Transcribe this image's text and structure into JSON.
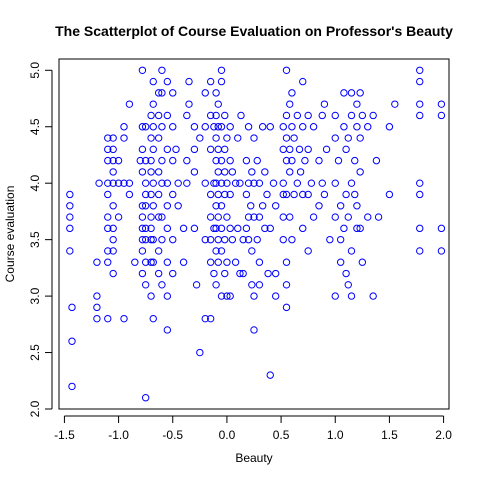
{
  "chart_data": {
    "type": "scatter",
    "title": "The Scatterplot of Course Evaluation on Professor's Beauty",
    "xlabel": "Beauty",
    "ylabel": "Course evaluation",
    "xlim": [
      -1.55,
      2.05
    ],
    "ylim": [
      2.0,
      5.1
    ],
    "x_ticks": [
      -1.5,
      -1.0,
      -0.5,
      0.0,
      0.5,
      1.0,
      1.5,
      2.0
    ],
    "x_tick_labels": [
      "-1.5",
      "-1.0",
      "-0.5",
      "0.0",
      "0.5",
      "1.0",
      "1.5",
      "2.0"
    ],
    "y_ticks": [
      2.0,
      2.5,
      3.0,
      3.5,
      4.0,
      4.5,
      5.0
    ],
    "y_tick_labels": [
      "2.0",
      "2.5",
      "3.0",
      "3.5",
      "4.0",
      "4.5",
      "5.0"
    ],
    "grid": false,
    "legend": "none",
    "marker": "open-circle",
    "point_color": "#0000ff",
    "points": [
      [
        -1.45,
        3.9
      ],
      [
        -1.45,
        3.8
      ],
      [
        -1.45,
        3.7
      ],
      [
        -1.45,
        3.6
      ],
      [
        -1.45,
        3.4
      ],
      [
        -1.43,
        2.9
      ],
      [
        -1.43,
        2.6
      ],
      [
        -1.43,
        2.2
      ],
      [
        -1.2,
        3.3
      ],
      [
        -1.2,
        3.0
      ],
      [
        -1.2,
        2.9
      ],
      [
        -1.2,
        2.8
      ],
      [
        -1.18,
        4.0
      ],
      [
        -1.1,
        4.4
      ],
      [
        -1.1,
        4.3
      ],
      [
        -1.1,
        4.2
      ],
      [
        -1.1,
        4.0
      ],
      [
        -1.1,
        3.9
      ],
      [
        -1.1,
        3.7
      ],
      [
        -1.1,
        3.6
      ],
      [
        -1.1,
        3.4
      ],
      [
        -1.1,
        3.3
      ],
      [
        -1.1,
        2.8
      ],
      [
        -1.05,
        4.4
      ],
      [
        -1.05,
        4.3
      ],
      [
        -1.05,
        4.2
      ],
      [
        -1.05,
        4.1
      ],
      [
        -1.05,
        4.0
      ],
      [
        -1.05,
        3.8
      ],
      [
        -1.05,
        3.6
      ],
      [
        -1.05,
        3.5
      ],
      [
        -1.05,
        3.4
      ],
      [
        -1.05,
        3.2
      ],
      [
        -1.0,
        4.2
      ],
      [
        -1.0,
        4.0
      ],
      [
        -1.0,
        3.7
      ],
      [
        -0.95,
        4.5
      ],
      [
        -0.95,
        4.4
      ],
      [
        -0.95,
        4.0
      ],
      [
        -0.95,
        2.8
      ],
      [
        -0.9,
        4.7
      ],
      [
        -0.9,
        4.0
      ],
      [
        -0.9,
        3.9
      ],
      [
        -0.85,
        3.3
      ],
      [
        -0.8,
        4.2
      ],
      [
        -0.78,
        5.0
      ],
      [
        -0.78,
        4.5
      ],
      [
        -0.78,
        4.3
      ],
      [
        -0.78,
        4.1
      ],
      [
        -0.78,
        3.8
      ],
      [
        -0.78,
        3.7
      ],
      [
        -0.78,
        3.6
      ],
      [
        -0.78,
        3.5
      ],
      [
        -0.78,
        3.4
      ],
      [
        -0.78,
        3.2
      ],
      [
        -0.75,
        4.5
      ],
      [
        -0.75,
        4.2
      ],
      [
        -0.75,
        4.0
      ],
      [
        -0.75,
        3.9
      ],
      [
        -0.75,
        3.8
      ],
      [
        -0.75,
        3.6
      ],
      [
        -0.75,
        3.5
      ],
      [
        -0.75,
        3.3
      ],
      [
        -0.75,
        3.1
      ],
      [
        -0.75,
        2.1
      ],
      [
        -0.7,
        4.6
      ],
      [
        -0.7,
        4.4
      ],
      [
        -0.7,
        4.2
      ],
      [
        -0.7,
        4.1
      ],
      [
        -0.7,
        3.9
      ],
      [
        -0.7,
        3.7
      ],
      [
        -0.7,
        3.6
      ],
      [
        -0.7,
        3.5
      ],
      [
        -0.7,
        3.3
      ],
      [
        -0.7,
        3.0
      ],
      [
        -0.68,
        4.9
      ],
      [
        -0.68,
        4.7
      ],
      [
        -0.68,
        4.5
      ],
      [
        -0.68,
        4.3
      ],
      [
        -0.68,
        4.0
      ],
      [
        -0.68,
        3.8
      ],
      [
        -0.68,
        3.5
      ],
      [
        -0.68,
        3.3
      ],
      [
        -0.68,
        2.8
      ],
      [
        -0.63,
        4.8
      ],
      [
        -0.63,
        4.6
      ],
      [
        -0.63,
        4.4
      ],
      [
        -0.63,
        4.1
      ],
      [
        -0.63,
        3.9
      ],
      [
        -0.63,
        3.7
      ],
      [
        -0.63,
        3.4
      ],
      [
        -0.63,
        3.2
      ],
      [
        -0.6,
        5.0
      ],
      [
        -0.6,
        4.8
      ],
      [
        -0.6,
        4.5
      ],
      [
        -0.6,
        4.2
      ],
      [
        -0.6,
        4.0
      ],
      [
        -0.6,
        3.7
      ],
      [
        -0.6,
        3.5
      ],
      [
        -0.6,
        3.1
      ],
      [
        -0.55,
        4.9
      ],
      [
        -0.55,
        4.6
      ],
      [
        -0.55,
        4.3
      ],
      [
        -0.55,
        4.0
      ],
      [
        -0.55,
        3.8
      ],
      [
        -0.55,
        3.6
      ],
      [
        -0.55,
        3.3
      ],
      [
        -0.55,
        3.0
      ],
      [
        -0.55,
        2.7
      ],
      [
        -0.5,
        4.8
      ],
      [
        -0.5,
        4.5
      ],
      [
        -0.5,
        4.2
      ],
      [
        -0.5,
        3.9
      ],
      [
        -0.5,
        3.5
      ],
      [
        -0.5,
        3.2
      ],
      [
        -0.47,
        4.3
      ],
      [
        -0.45,
        4.0
      ],
      [
        -0.45,
        3.8
      ],
      [
        -0.4,
        3.6
      ],
      [
        -0.4,
        3.3
      ],
      [
        -0.37,
        4.6
      ],
      [
        -0.37,
        4.2
      ],
      [
        -0.37,
        4.0
      ],
      [
        -0.35,
        4.9
      ],
      [
        -0.35,
        4.7
      ],
      [
        -0.3,
        4.5
      ],
      [
        -0.3,
        4.3
      ],
      [
        -0.3,
        4.1
      ],
      [
        -0.3,
        3.6
      ],
      [
        -0.28,
        3.1
      ],
      [
        -0.25,
        4.4
      ],
      [
        -0.25,
        2.5
      ],
      [
        -0.2,
        4.8
      ],
      [
        -0.2,
        4.5
      ],
      [
        -0.2,
        4.0
      ],
      [
        -0.2,
        3.5
      ],
      [
        -0.2,
        2.8
      ],
      [
        -0.15,
        4.9
      ],
      [
        -0.15,
        4.6
      ],
      [
        -0.15,
        4.3
      ],
      [
        -0.15,
        3.9
      ],
      [
        -0.15,
        3.7
      ],
      [
        -0.15,
        3.5
      ],
      [
        -0.15,
        3.3
      ],
      [
        -0.15,
        2.8
      ],
      [
        -0.12,
        4.5
      ],
      [
        -0.12,
        4.0
      ],
      [
        -0.12,
        3.6
      ],
      [
        -0.12,
        3.2
      ],
      [
        -0.1,
        4.8
      ],
      [
        -0.1,
        4.6
      ],
      [
        -0.1,
        4.4
      ],
      [
        -0.1,
        4.2
      ],
      [
        -0.1,
        4.0
      ],
      [
        -0.1,
        3.8
      ],
      [
        -0.1,
        3.6
      ],
      [
        -0.1,
        3.4
      ],
      [
        -0.1,
        3.1
      ],
      [
        -0.08,
        4.7
      ],
      [
        -0.08,
        4.5
      ],
      [
        -0.08,
        4.3
      ],
      [
        -0.08,
        4.1
      ],
      [
        -0.08,
        3.9
      ],
      [
        -0.08,
        3.7
      ],
      [
        -0.08,
        3.5
      ],
      [
        -0.08,
        3.3
      ],
      [
        -0.05,
        5.0
      ],
      [
        -0.05,
        4.9
      ],
      [
        -0.05,
        4.5
      ],
      [
        -0.05,
        4.2
      ],
      [
        -0.05,
        4.0
      ],
      [
        -0.05,
        3.8
      ],
      [
        -0.05,
        3.6
      ],
      [
        -0.05,
        3.4
      ],
      [
        -0.05,
        3.0
      ],
      [
        -0.02,
        4.6
      ],
      [
        -0.02,
        4.3
      ],
      [
        -0.02,
        4.1
      ],
      [
        -0.02,
        3.9
      ],
      [
        -0.02,
        3.5
      ],
      [
        -0.02,
        3.2
      ],
      [
        0.0,
        4.4
      ],
      [
        0.0,
        4.0
      ],
      [
        0.0,
        3.7
      ],
      [
        0.0,
        3.3
      ],
      [
        0.0,
        3.0
      ],
      [
        0.03,
        4.5
      ],
      [
        0.03,
        4.2
      ],
      [
        0.03,
        3.9
      ],
      [
        0.03,
        3.6
      ],
      [
        0.03,
        3.0
      ],
      [
        0.05,
        4.1
      ],
      [
        0.05,
        3.5
      ],
      [
        0.08,
        4.0
      ],
      [
        0.08,
        3.3
      ],
      [
        0.1,
        4.4
      ],
      [
        0.1,
        3.6
      ],
      [
        0.12,
        4.0
      ],
      [
        0.12,
        3.2
      ],
      [
        0.13,
        4.6
      ],
      [
        0.15,
        3.5
      ],
      [
        0.15,
        3.2
      ],
      [
        0.18,
        4.2
      ],
      [
        0.18,
        3.9
      ],
      [
        0.18,
        3.6
      ],
      [
        0.2,
        4.5
      ],
      [
        0.2,
        4.0
      ],
      [
        0.2,
        3.7
      ],
      [
        0.2,
        3.5
      ],
      [
        0.22,
        3.8
      ],
      [
        0.23,
        4.1
      ],
      [
        0.23,
        3.4
      ],
      [
        0.23,
        3.1
      ],
      [
        0.25,
        4.4
      ],
      [
        0.25,
        4.0
      ],
      [
        0.25,
        3.7
      ],
      [
        0.25,
        3.0
      ],
      [
        0.25,
        2.7
      ],
      [
        0.28,
        4.2
      ],
      [
        0.28,
        3.5
      ],
      [
        0.3,
        4.0
      ],
      [
        0.3,
        3.7
      ],
      [
        0.3,
        3.3
      ],
      [
        0.3,
        3.1
      ],
      [
        0.33,
        4.5
      ],
      [
        0.33,
        3.8
      ],
      [
        0.35,
        4.1
      ],
      [
        0.35,
        3.6
      ],
      [
        0.37,
        3.9
      ],
      [
        0.38,
        3.2
      ],
      [
        0.4,
        4.5
      ],
      [
        0.4,
        3.6
      ],
      [
        0.4,
        2.3
      ],
      [
        0.43,
        4.0
      ],
      [
        0.45,
        3.8
      ],
      [
        0.45,
        3.2
      ],
      [
        0.45,
        3.0
      ],
      [
        0.52,
        4.5
      ],
      [
        0.52,
        4.3
      ],
      [
        0.52,
        4.0
      ],
      [
        0.52,
        3.9
      ],
      [
        0.52,
        3.7
      ],
      [
        0.52,
        3.5
      ],
      [
        0.55,
        5.0
      ],
      [
        0.55,
        4.6
      ],
      [
        0.55,
        4.4
      ],
      [
        0.55,
        4.2
      ],
      [
        0.55,
        3.9
      ],
      [
        0.55,
        3.3
      ],
      [
        0.55,
        3.1
      ],
      [
        0.55,
        2.9
      ],
      [
        0.58,
        4.7
      ],
      [
        0.58,
        4.3
      ],
      [
        0.58,
        4.1
      ],
      [
        0.58,
        3.7
      ],
      [
        0.6,
        4.8
      ],
      [
        0.6,
        4.5
      ],
      [
        0.6,
        4.2
      ],
      [
        0.6,
        3.5
      ],
      [
        0.62,
        4.4
      ],
      [
        0.62,
        3.9
      ],
      [
        0.65,
        4.6
      ],
      [
        0.65,
        4.0
      ],
      [
        0.67,
        4.3
      ],
      [
        0.68,
        4.1
      ],
      [
        0.7,
        4.9
      ],
      [
        0.7,
        4.5
      ],
      [
        0.7,
        3.9
      ],
      [
        0.7,
        3.6
      ],
      [
        0.72,
        4.2
      ],
      [
        0.75,
        4.6
      ],
      [
        0.75,
        4.3
      ],
      [
        0.75,
        3.9
      ],
      [
        0.75,
        3.4
      ],
      [
        0.78,
        4.0
      ],
      [
        0.8,
        4.5
      ],
      [
        0.8,
        3.7
      ],
      [
        0.85,
        4.2
      ],
      [
        0.85,
        3.8
      ],
      [
        0.88,
        4.6
      ],
      [
        0.88,
        4.0
      ],
      [
        0.9,
        4.7
      ],
      [
        0.9,
        3.9
      ],
      [
        0.92,
        4.3
      ],
      [
        0.95,
        3.5
      ],
      [
        1.0,
        4.6
      ],
      [
        1.0,
        4.4
      ],
      [
        1.0,
        4.0
      ],
      [
        1.0,
        3.7
      ],
      [
        1.0,
        3.0
      ],
      [
        1.03,
        4.2
      ],
      [
        1.05,
        3.8
      ],
      [
        1.05,
        3.5
      ],
      [
        1.05,
        3.3
      ],
      [
        1.08,
        4.8
      ],
      [
        1.08,
        4.5
      ],
      [
        1.08,
        3.6
      ],
      [
        1.1,
        4.3
      ],
      [
        1.1,
        3.9
      ],
      [
        1.1,
        3.2
      ],
      [
        1.12,
        4.4
      ],
      [
        1.12,
        3.7
      ],
      [
        1.12,
        3.1
      ],
      [
        1.15,
        4.8
      ],
      [
        1.15,
        4.6
      ],
      [
        1.15,
        4.0
      ],
      [
        1.15,
        3.4
      ],
      [
        1.15,
        3.0
      ],
      [
        1.18,
        4.2
      ],
      [
        1.18,
        3.9
      ],
      [
        1.2,
        4.7
      ],
      [
        1.2,
        4.5
      ],
      [
        1.2,
        3.8
      ],
      [
        1.2,
        3.6
      ],
      [
        1.23,
        4.8
      ],
      [
        1.23,
        4.4
      ],
      [
        1.23,
        4.1
      ],
      [
        1.23,
        3.6
      ],
      [
        1.25,
        4.6
      ],
      [
        1.25,
        3.3
      ],
      [
        1.3,
        4.5
      ],
      [
        1.3,
        3.7
      ],
      [
        1.35,
        4.6
      ],
      [
        1.35,
        3.0
      ],
      [
        1.38,
        4.2
      ],
      [
        1.4,
        3.7
      ],
      [
        1.5,
        4.5
      ],
      [
        1.5,
        3.9
      ],
      [
        1.55,
        4.7
      ],
      [
        1.78,
        5.0
      ],
      [
        1.78,
        4.9
      ],
      [
        1.78,
        4.7
      ],
      [
        1.78,
        4.6
      ],
      [
        1.78,
        4.0
      ],
      [
        1.78,
        3.9
      ],
      [
        1.78,
        3.6
      ],
      [
        1.78,
        3.4
      ],
      [
        1.98,
        4.7
      ],
      [
        1.98,
        4.6
      ],
      [
        1.98,
        3.6
      ],
      [
        1.98,
        3.4
      ]
    ]
  }
}
